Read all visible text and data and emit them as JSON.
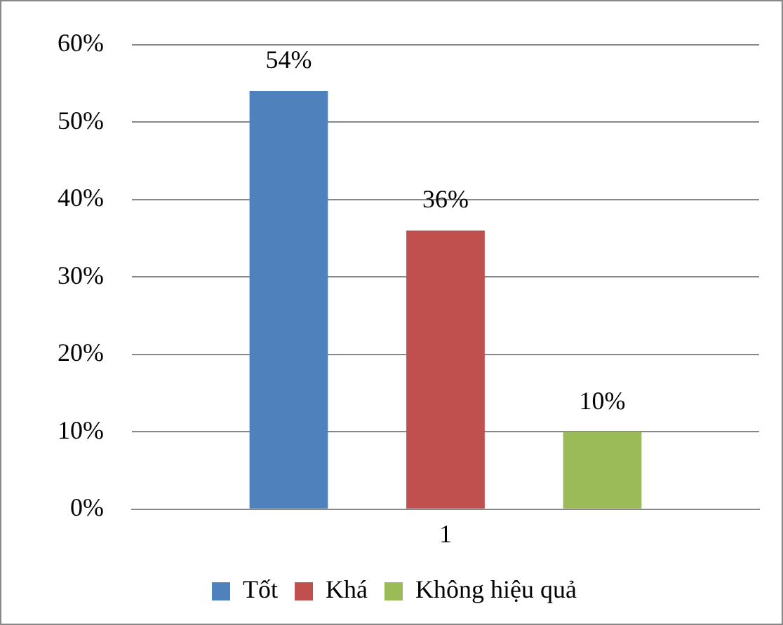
{
  "chart_data": {
    "type": "bar",
    "categories": [
      "1"
    ],
    "series": [
      {
        "name": "Tốt",
        "color": "#4f81bd",
        "values": [
          54
        ],
        "value_labels": [
          "54%"
        ]
      },
      {
        "name": "Khá",
        "color": "#c0504d",
        "values": [
          36
        ],
        "value_labels": [
          "36%"
        ]
      },
      {
        "name": "Không hiệu quả",
        "color": "#9bbb59",
        "values": [
          10
        ],
        "value_labels": [
          "10%"
        ]
      }
    ],
    "ylim": [
      0,
      60
    ],
    "yticks": [
      {
        "value": 0,
        "label": "0%"
      },
      {
        "value": 10,
        "label": "10%"
      },
      {
        "value": 20,
        "label": "20%"
      },
      {
        "value": 30,
        "label": "30%"
      },
      {
        "value": 40,
        "label": "40%"
      },
      {
        "value": 50,
        "label": "50%"
      },
      {
        "value": 60,
        "label": "60%"
      }
    ],
    "grid": "y",
    "legend": "bottom"
  }
}
